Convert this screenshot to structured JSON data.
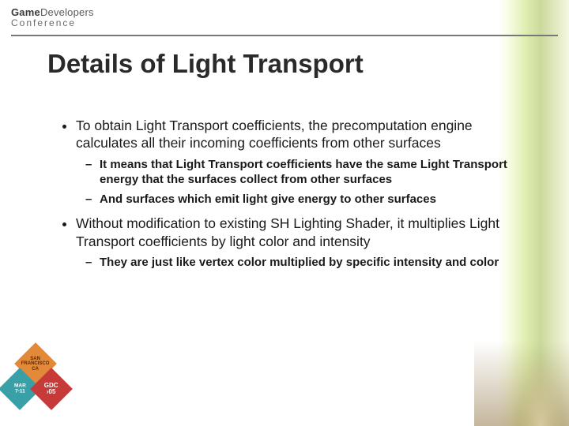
{
  "logo": {
    "word1": "Game",
    "word2": "Developers",
    "line2": "Conference"
  },
  "title": "Details of Light Transport",
  "bullets": [
    {
      "text": "To obtain Light Transport coefficients, the precomputation engine calculates all their incoming coefficients from other surfaces",
      "sub": [
        "It means that Light Transport coefficients have the same Light Transport energy that the surfaces collect from other surfaces",
        "And surfaces which emit light give energy to other surfaces"
      ]
    },
    {
      "text": "Without modification to existing SH Lighting Shader, it multiplies Light Transport coefficients by light color and intensity",
      "sub": [
        "They are just like vertex color multiplied by specific intensity and color"
      ]
    }
  ],
  "badges": {
    "d1_l1": "SAN",
    "d1_l2": "FRANCISCO",
    "d1_l3": "CA",
    "d2_l1": "MAR",
    "d2_l2": "7-11",
    "d3_l1": "GDC",
    "d3_l2": "›05"
  },
  "colors": {
    "hr": "#777777",
    "title": "#2a2a2a",
    "text": "#1a1a1a",
    "badge_orange": "#e2893a",
    "badge_teal": "#3aa0a8",
    "badge_red": "#c63a3a"
  }
}
